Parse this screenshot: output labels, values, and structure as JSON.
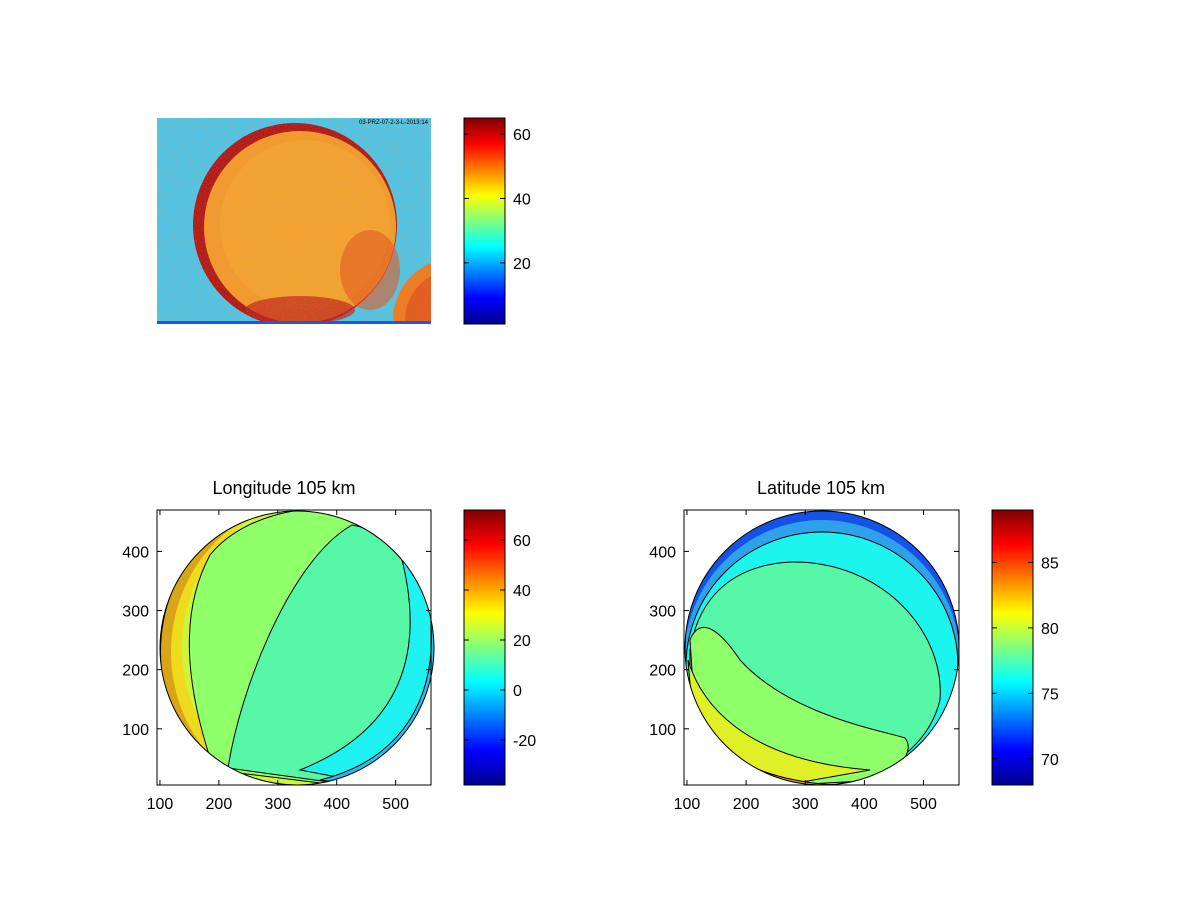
{
  "chart_data": [
    {
      "type": "heatmap",
      "title": "",
      "image_note": "raw camera frame: bright disk (values ~45-60) on noisy background (~25-30), dark limb arc near left/top/bottom edge, bright corner bottom-right",
      "overlay_text": "03-PRZ-07-2-3-L-2013:14",
      "colorbar": {
        "range": [
          1,
          65
        ],
        "ticks": [
          20,
          40,
          60
        ],
        "colormap": "jet"
      }
    },
    {
      "type": "heatmap",
      "title": "Longitude 105 km",
      "xticks": [
        100,
        200,
        300,
        400,
        500
      ],
      "yticks": [
        100,
        200,
        300,
        400
      ],
      "xlim": [
        95,
        560
      ],
      "ylim": [
        5,
        470
      ],
      "colorbar": {
        "range": [
          -38,
          72
        ],
        "ticks": [
          -20,
          0,
          20,
          40,
          60
        ],
        "colormap": "jet"
      },
      "regions_approx_value": {
        "outer_left_band": 35,
        "left_band": 26,
        "center_left": 22,
        "center": 15,
        "right_band": 5,
        "outer_right_band": -5
      }
    },
    {
      "type": "heatmap",
      "title": "Latitude 105 km",
      "xticks": [
        100,
        200,
        300,
        400,
        500
      ],
      "yticks": [
        100,
        200,
        300,
        400
      ],
      "xlim": [
        95,
        560
      ],
      "ylim": [
        5,
        470
      ],
      "colorbar": {
        "range": [
          68,
          89
        ],
        "ticks": [
          70,
          75,
          80,
          85
        ],
        "colormap": "jet"
      },
      "regions_approx_value": {
        "top_rim": 71,
        "upper_band": 75.5,
        "center": 77,
        "lower_band": 78.5,
        "bottom_rim": 81
      }
    }
  ]
}
